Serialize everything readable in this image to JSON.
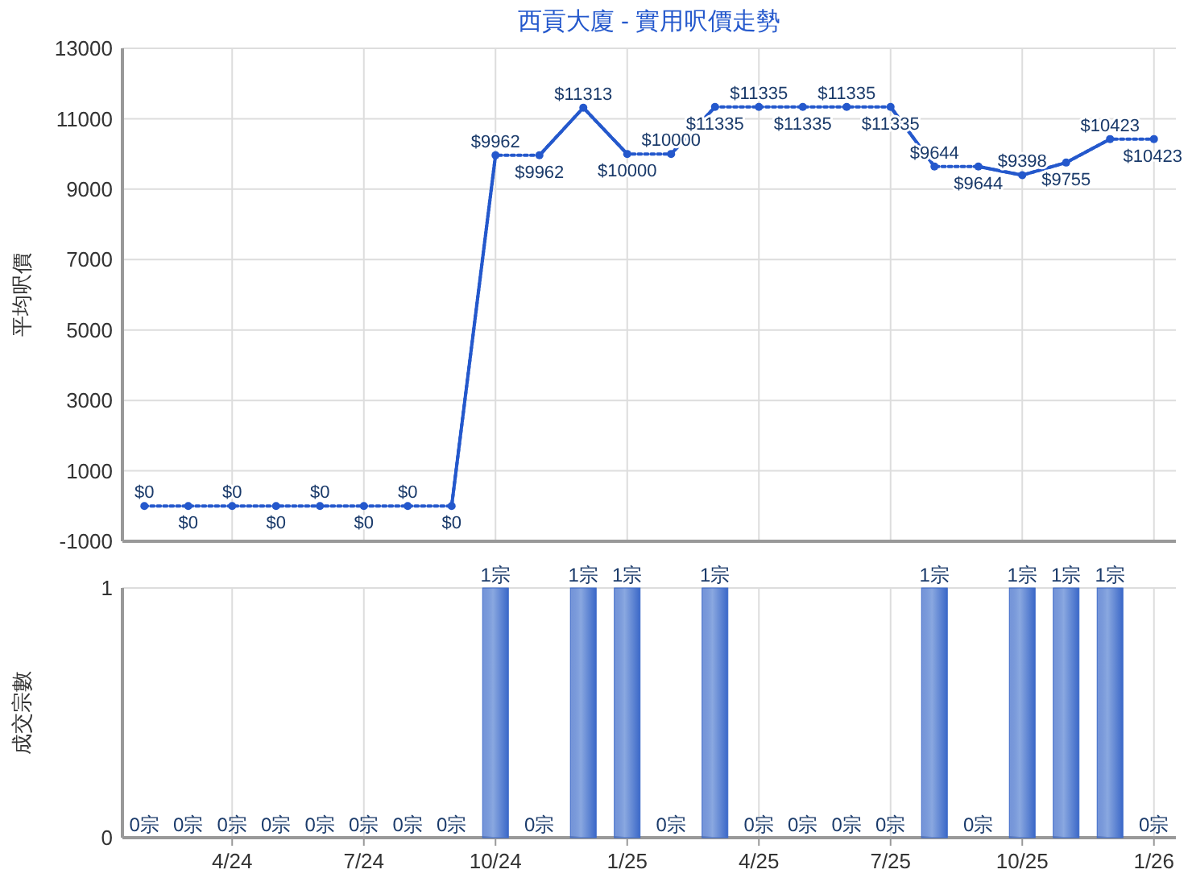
{
  "chart_data": [
    {
      "type": "line",
      "title": "西貢大廈 - 實用呎價走勢",
      "ylabel": "平均呎價",
      "categories": [
        null,
        null,
        null,
        null,
        null,
        null,
        null,
        null,
        null,
        null,
        null,
        null,
        null,
        null,
        null,
        null,
        null,
        null,
        null,
        null,
        null,
        null,
        null,
        null
      ],
      "series": [
        {
          "color": "#2458cc",
          "line_style": "dotted",
          "values": [
            0,
            0,
            0,
            0,
            0,
            0,
            0,
            0,
            9962,
            9962,
            11313,
            10000,
            10000,
            11335,
            11335,
            11335,
            11335,
            11335,
            9644,
            9644,
            9398,
            9755,
            10423,
            10423
          ],
          "value_labels": [
            "$0",
            "$0",
            "$0",
            "$0",
            "$0",
            "$0",
            "$0",
            "$0",
            "$9962",
            "$9962",
            "$11313",
            "$10000",
            "$10000",
            "$11335",
            "$11335",
            "$11335",
            "$11335",
            "$11335",
            "$9644",
            "$9644",
            "$9398",
            "$9755",
            "$10423",
            "$10423"
          ]
        }
      ],
      "ylim": [
        -1000,
        13000
      ],
      "yticks": [
        -1000,
        1000,
        3000,
        5000,
        7000,
        9000,
        11000,
        13000
      ],
      "grid": true,
      "marker": "circle",
      "tick_labels": "y"
    },
    {
      "type": "bar",
      "ylabel": "成交宗數",
      "categories": [
        null,
        null,
        "4/24",
        null,
        null,
        "7/24",
        null,
        null,
        "10/24",
        null,
        null,
        "1/25",
        null,
        null,
        "4/25",
        null,
        null,
        "7/25",
        null,
        null,
        "10/25",
        null,
        null,
        "1/26"
      ],
      "values": [
        0,
        0,
        0,
        0,
        0,
        0,
        0,
        0,
        1,
        0,
        1,
        1,
        0,
        1,
        0,
        0,
        0,
        0,
        1,
        0,
        1,
        1,
        1,
        0
      ],
      "value_labels": [
        "0宗",
        "0宗",
        "0宗",
        "0宗",
        "0宗",
        "0宗",
        "0宗",
        "0宗",
        "1宗",
        "0宗",
        "1宗",
        "1宗",
        "0宗",
        "1宗",
        "0宗",
        "0宗",
        "0宗",
        "0宗",
        "1宗",
        "0宗",
        "1宗",
        "1宗",
        "1宗",
        "0宗"
      ],
      "color": "#3b68c8",
      "ylim": [
        0,
        1
      ],
      "yticks": [
        0,
        1
      ],
      "grid": true
    }
  ]
}
